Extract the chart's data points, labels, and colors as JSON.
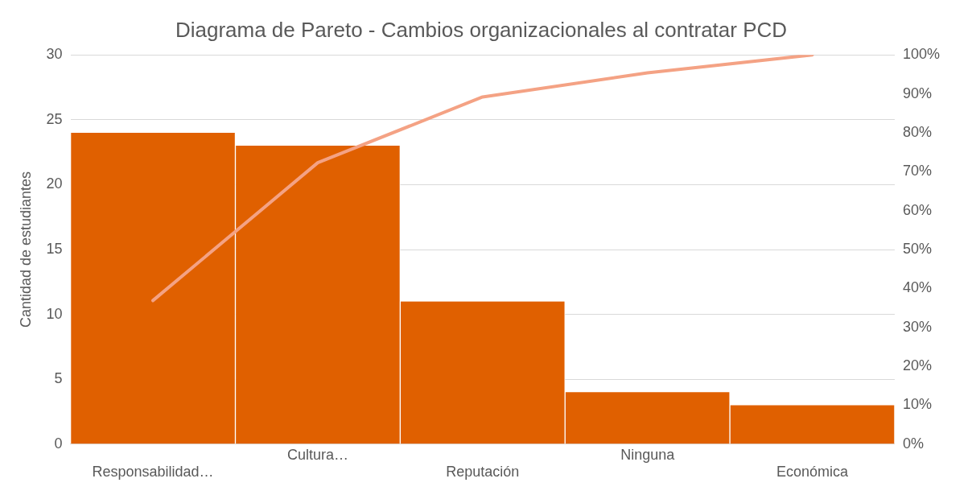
{
  "chart_data": {
    "type": "bar",
    "title": "Diagrama de Pareto - Cambios organizacionales al contratar PCD",
    "ylabel": "Cantidad de estudiantes",
    "categories": [
      "Responsabilidad…",
      "Cultura…",
      "Reputación",
      "Ninguna",
      "Económica"
    ],
    "series": [
      {
        "color": "#e06000",
        "values": [
          24,
          23,
          11,
          4,
          3
        ]
      },
      {
        "type": "line",
        "axis": "y2",
        "color": "#f4a284",
        "values": [
          36.9,
          72.3,
          89.2,
          95.4,
          100
        ]
      }
    ],
    "ylim": [
      0,
      30
    ],
    "yticks": [
      0,
      5,
      10,
      15,
      20,
      25,
      30
    ],
    "y2lim": [
      0,
      100
    ],
    "y2ticks": [
      {
        "value": 0,
        "label": "0%"
      },
      {
        "value": 10,
        "label": "10%"
      },
      {
        "value": 20,
        "label": "20%"
      },
      {
        "value": 30,
        "label": "30%"
      },
      {
        "value": 40,
        "label": "40%"
      },
      {
        "value": 50,
        "label": "50%"
      },
      {
        "value": 60,
        "label": "60%"
      },
      {
        "value": 70,
        "label": "70%"
      },
      {
        "value": 80,
        "label": "80%"
      },
      {
        "value": 90,
        "label": "90%"
      },
      {
        "value": 100,
        "label": "100%"
      }
    ],
    "grid": "y",
    "legend": false,
    "marker": "none",
    "line_style": "solid"
  }
}
